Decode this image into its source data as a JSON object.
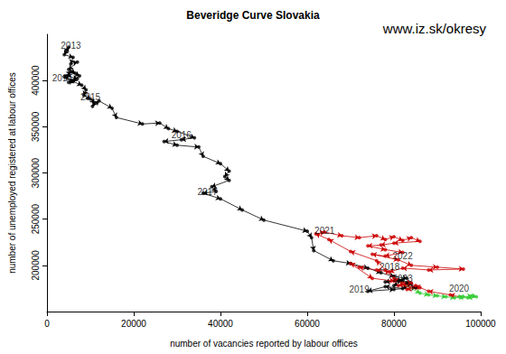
{
  "chart_data": {
    "type": "line",
    "title": "Beveridge Curve Slovakia",
    "subtitle": "www.iz.sk/okresy",
    "x_label": "number of vacancies reported by labour offices",
    "y_label": "number of unemployed registered at labour offices",
    "xlim": [
      0,
      100000
    ],
    "xticks": [
      0,
      20000,
      40000,
      60000,
      80000,
      100000
    ],
    "ylim": [
      150000,
      450000
    ],
    "yticks": [
      200000,
      250000,
      300000,
      350000,
      400000
    ],
    "grid": false,
    "marker": "circle",
    "line_style": "arrow",
    "series": [
      {
        "color": "#000000",
        "x": [
          4500,
          5000,
          4000,
          6000,
          5500,
          7000,
          5000,
          6500,
          4500,
          7000,
          5000,
          6000,
          4000,
          5500,
          7500,
          6000,
          8000,
          9000,
          8500,
          10000,
          11000,
          10500,
          12000,
          15000,
          16000,
          22000,
          26000,
          28000,
          30000,
          34000,
          31000,
          27000,
          30000,
          35000,
          36000,
          40000,
          42000,
          41000,
          42000,
          38000,
          39000,
          36000,
          40000,
          45000,
          50000,
          60000,
          61000,
          61500,
          66000,
          70000,
          74000,
          77000,
          80000,
          83000,
          78000,
          82000,
          80000,
          84000,
          82000,
          78000,
          74000,
          80000,
          85000,
          83000,
          81000
        ],
        "y": [
          432000,
          436000,
          428000,
          425000,
          418000,
          420000,
          412000,
          408000,
          405000,
          402000,
          398000,
          400000,
          404000,
          410000,
          405000,
          399000,
          395000,
          390000,
          384000,
          380000,
          376000,
          372000,
          378000,
          370000,
          360000,
          353000,
          354000,
          348000,
          345000,
          338000,
          336000,
          334000,
          330000,
          328000,
          318000,
          310000,
          302000,
          296000,
          292000,
          285000,
          280000,
          278000,
          272000,
          260000,
          249000,
          237000,
          230000,
          216000,
          205000,
          202000,
          197000,
          192000,
          188000,
          186000,
          182000,
          184000,
          178000,
          180000,
          175000,
          177000,
          172000,
          174000,
          176000,
          181000,
          183000
        ]
      },
      {
        "color": "#33cc33",
        "x": [
          86000,
          88000,
          90000,
          92000,
          94000,
          96000,
          98000,
          99000,
          97000,
          95000
        ],
        "y": [
          170000,
          168000,
          167000,
          166000,
          165000,
          166000,
          167000,
          166000,
          165000,
          166000
        ]
      },
      {
        "color": "#cc0000",
        "x": [
          93000,
          88000,
          85000,
          82000,
          80000,
          78000,
          76000,
          70000,
          65000,
          62000,
          64000,
          68000,
          72000,
          76000,
          78000,
          80000,
          82000,
          84000,
          86000,
          80000,
          77000,
          74000,
          78000,
          82000,
          78000,
          75000,
          81000,
          84000,
          90000,
          96000,
          88000,
          82000,
          79000,
          76000,
          72000,
          70000,
          75000,
          80000,
          84000,
          81000,
          86000,
          83000
        ],
        "y": [
          168000,
          172000,
          178000,
          180000,
          186000,
          195000,
          205000,
          215000,
          228000,
          234000,
          236000,
          232000,
          230000,
          232000,
          228000,
          231000,
          227000,
          230000,
          226000,
          224000,
          222000,
          221000,
          217000,
          214000,
          210000,
          212000,
          206000,
          200000,
          198000,
          196000,
          195000,
          197000,
          193000,
          195000,
          198000,
          202000,
          186000,
          183000,
          181000,
          178000,
          176000,
          174000
        ]
      }
    ],
    "annotations": [
      {
        "text": "2013",
        "x": 5500,
        "y": 438000
      },
      {
        "text": "2014",
        "x": 3500,
        "y": 403000
      },
      {
        "text": "2015",
        "x": 10000,
        "y": 382000
      },
      {
        "text": "2016",
        "x": 31000,
        "y": 341000
      },
      {
        "text": "2017",
        "x": 37000,
        "y": 279000
      },
      {
        "text": "2021",
        "x": 64000,
        "y": 237000
      },
      {
        "text": "2022",
        "x": 82000,
        "y": 210000
      },
      {
        "text": "2018",
        "x": 79000,
        "y": 198000
      },
      {
        "text": "2023",
        "x": 82000,
        "y": 186000
      },
      {
        "text": "2019",
        "x": 72000,
        "y": 174000
      },
      {
        "text": "2020",
        "x": 95000,
        "y": 175000
      }
    ]
  }
}
